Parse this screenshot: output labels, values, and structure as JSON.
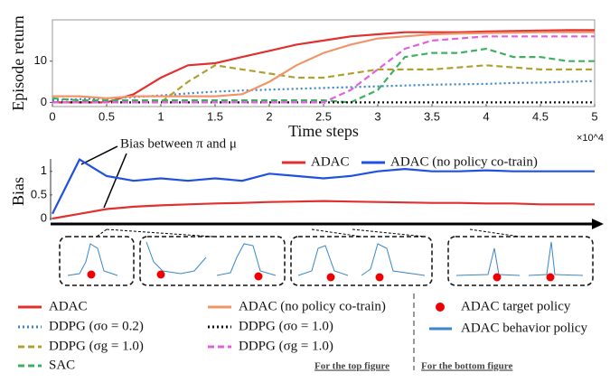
{
  "chart_data": [
    {
      "type": "line",
      "ylabel": "Episode return",
      "xlabel": "Time steps",
      "x_multiplier": "×10^4",
      "x": [
        0,
        0.25,
        0.5,
        0.75,
        1,
        1.25,
        1.5,
        1.75,
        2,
        2.25,
        2.5,
        2.75,
        3,
        3.25,
        3.5,
        3.75,
        4,
        4.25,
        4.5,
        4.75,
        5
      ],
      "xlim": [
        0,
        5
      ],
      "xticks": [
        0,
        0.5,
        1,
        1.5,
        2,
        2.5,
        3,
        3.5,
        4,
        4.5,
        5
      ],
      "ylim": [
        -1,
        20
      ],
      "yticks": [
        0,
        10
      ],
      "series": [
        {
          "name": "ADAC",
          "color": "#e03030",
          "dash": "solid",
          "values": [
            0,
            0,
            0,
            2,
            6,
            9,
            9.5,
            11,
            12.5,
            14,
            15,
            16,
            16.5,
            17,
            17,
            17,
            17.2,
            17.3,
            17.4,
            17.5,
            17.5
          ]
        },
        {
          "name": "DDPG (σo = 0.2)",
          "color": "#3a86c8",
          "dash": "dotted",
          "values": [
            0.5,
            0.8,
            1,
            1.3,
            1.7,
            2.2,
            2.6,
            2.9,
            3.1,
            3.3,
            3.5,
            3.7,
            3.9,
            4.1,
            4.3,
            4.4,
            4.5,
            4.7,
            4.8,
            5,
            5.2
          ]
        },
        {
          "name": "DDPG (σg = 1.0)",
          "color": "#b0a030",
          "dash": "dashed",
          "values": [
            0,
            0,
            0,
            0,
            0,
            5,
            9,
            8,
            7,
            6,
            6,
            7,
            8,
            8,
            8,
            8.5,
            9,
            8.5,
            8,
            8,
            8
          ]
        },
        {
          "name": "SAC",
          "color": "#40b060",
          "dash": "dashed",
          "values": [
            1,
            0.5,
            0.5,
            0.5,
            0.5,
            0.5,
            0.5,
            0.5,
            0.5,
            0.5,
            0.5,
            0,
            3,
            11,
            12,
            12,
            13,
            11,
            11,
            10,
            10
          ]
        },
        {
          "name": "ADAC (no policy co-train)",
          "color": "#f0956a",
          "dash": "solid",
          "values": [
            1.5,
            1.5,
            1,
            1.5,
            1.5,
            1.5,
            1.5,
            2,
            5,
            9,
            12,
            14,
            15.5,
            16,
            16.5,
            16.7,
            16.8,
            16.9,
            17,
            17,
            17
          ]
        },
        {
          "name": "DDPG (σo = 1.0)",
          "color": "#111111",
          "dash": "dotted",
          "values": [
            0,
            0,
            0,
            0,
            0,
            0,
            0,
            0,
            0,
            0,
            0,
            0,
            0,
            0,
            0,
            0,
            0,
            0,
            0,
            0,
            0
          ]
        },
        {
          "name": "DDPG (σg = 1.0)",
          "color": "#e060e0",
          "dash": "dashed",
          "values": [
            0,
            0,
            0,
            0,
            0,
            0,
            0,
            0,
            0,
            0,
            0,
            3,
            8,
            13,
            15,
            15.5,
            16,
            16,
            16,
            16,
            16
          ]
        }
      ],
      "caption": "For the top figure"
    },
    {
      "type": "line",
      "ylabel": "Bias",
      "annotation": "Bias between π and μ",
      "x": [
        0,
        0.25,
        0.5,
        0.75,
        1,
        1.25,
        1.5,
        1.75,
        2,
        2.25,
        2.5,
        2.75,
        3,
        3.25,
        3.5,
        3.75,
        4,
        4.25,
        4.5,
        4.75,
        5
      ],
      "xlim": [
        0,
        5
      ],
      "ylim": [
        0,
        1.3
      ],
      "yticks": [
        0,
        0.5,
        1
      ],
      "series": [
        {
          "name": "ADAC",
          "color": "#e03030",
          "values": [
            0,
            0.1,
            0.2,
            0.25,
            0.28,
            0.3,
            0.32,
            0.33,
            0.35,
            0.36,
            0.37,
            0.36,
            0.35,
            0.34,
            0.33,
            0.33,
            0.32,
            0.32,
            0.3,
            0.3,
            0.3
          ]
        },
        {
          "name": "ADAC (no policy co-train)",
          "color": "#2050e0",
          "values": [
            0.1,
            1.25,
            0.9,
            0.8,
            0.85,
            0.8,
            0.85,
            0.8,
            0.95,
            0.9,
            0.85,
            0.9,
            1.0,
            1.05,
            1.0,
            1.0,
            1.02,
            1.0,
            1.0,
            1.0,
            1.0
          ]
        }
      ],
      "inset_legend": [
        "ADAC target policy",
        "ADAC behavior policy"
      ],
      "caption": "For the bottom figure"
    }
  ]
}
